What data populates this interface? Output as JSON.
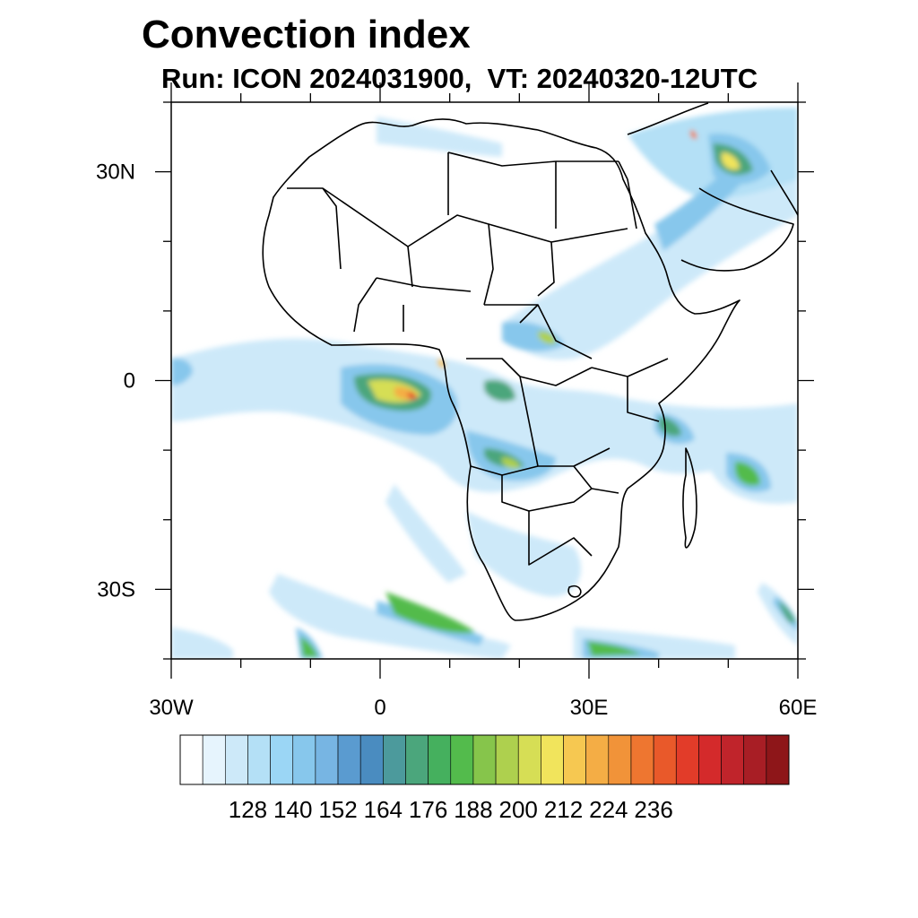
{
  "title": "Convection index",
  "subtitle": "Run: ICON 2024031900,  VT: 20240320-12UTC",
  "map": {
    "lon_range": [
      -30,
      60
    ],
    "lat_range": [
      -40,
      40
    ],
    "lat_ticks": [
      {
        "lat": 30,
        "label": "30N"
      },
      {
        "lat": 0,
        "label": "0"
      },
      {
        "lat": -30,
        "label": "30S"
      }
    ],
    "lon_ticks": [
      {
        "lon": -30,
        "label": "30W"
      },
      {
        "lon": 0,
        "label": "0"
      },
      {
        "lon": 30,
        "label": "30E"
      },
      {
        "lon": 60,
        "label": "60E"
      }
    ]
  },
  "colorbar": {
    "colors": [
      "#ffffff",
      "#e6f4fd",
      "#cde9f9",
      "#b4e0f6",
      "#9bd6f5",
      "#87c7ec",
      "#77b5e3",
      "#5a9bd0",
      "#4a8cc0",
      "#4c9a9c",
      "#4ba67c",
      "#45b05e",
      "#53bb4c",
      "#86c54b",
      "#aed04e",
      "#d6de55",
      "#f1e45c",
      "#f6c851",
      "#f4ad45",
      "#f19339",
      "#ee7630",
      "#e9592a",
      "#e23c29",
      "#d42a2b",
      "#c0242b",
      "#a81e25",
      "#8e1619"
    ],
    "labels": [
      "128",
      "140",
      "152",
      "164",
      "176",
      "188",
      "200",
      "212",
      "224",
      "236"
    ]
  },
  "chart_data": {
    "type": "map-contour-fill",
    "variable": "Convection index",
    "run": "ICON 2024031900",
    "valid_time": "20240320-12UTC",
    "lon_range": [
      -30,
      60
    ],
    "lat_range": [
      -40,
      40
    ],
    "colorbar_ticks": [
      128,
      140,
      152,
      164,
      176,
      188,
      200,
      212,
      224,
      236
    ]
  }
}
